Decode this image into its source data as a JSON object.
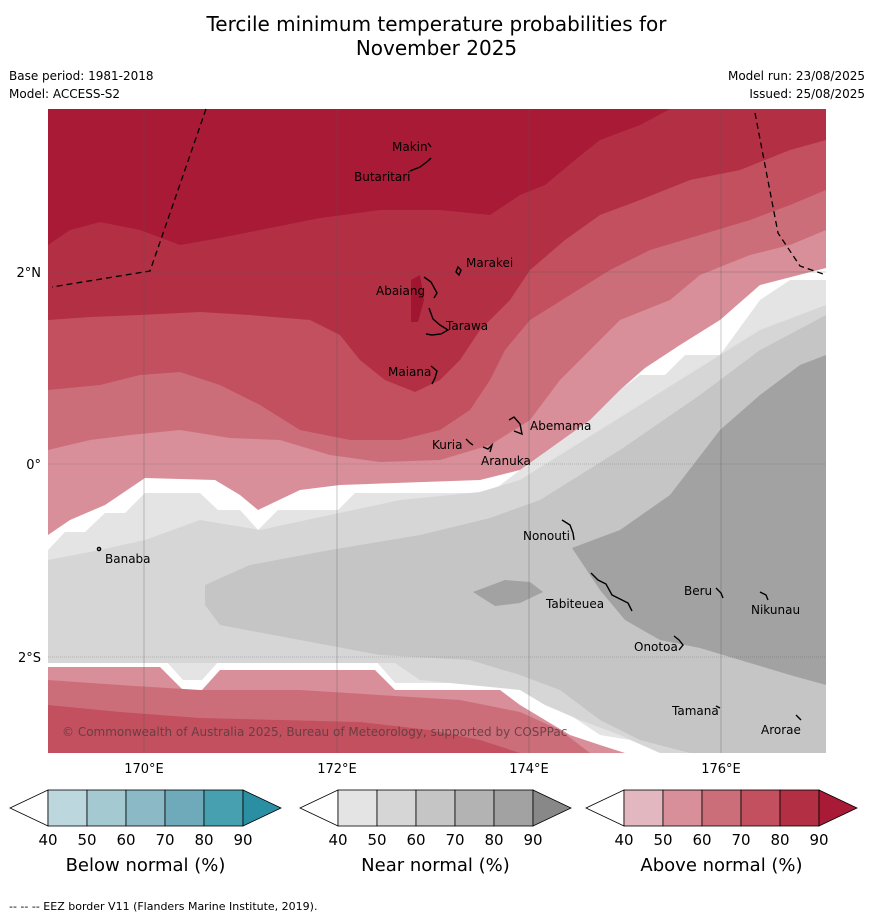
{
  "title_line1": "Tercile minimum temperature probabilities for",
  "title_line2": "November 2025",
  "base_period": "Base period: 1981-2018",
  "model": "Model: ACCESS-S2",
  "model_run": "Model run: 23/08/2025",
  "issued": "Issued: 25/08/2025",
  "copyright": "© Commonwealth of Australia 2025, Bureau of Meteorology, supported by COSPPac",
  "footnote": "--  --  -- EEZ border V11 (Flanders Marine Institute, 2019).",
  "lat_labels": [
    "2°N",
    "0°",
    "2°S"
  ],
  "lon_labels": [
    "170°E",
    "172°E",
    "174°E",
    "176°E"
  ],
  "places": [
    "Makin",
    "Butaritari",
    "Marakei",
    "Abaiang",
    "Tarawa",
    "Maiana",
    "Abemama",
    "Kuria",
    "Aranuka",
    "Banaba",
    "Nonouti",
    "Beru",
    "Nikunau",
    "Tabiteuea",
    "Onotoa",
    "Tamana",
    "Arorae"
  ],
  "colorbars": [
    {
      "name": "below",
      "title": "Below normal (%)",
      "ticks": [
        "40",
        "50",
        "60",
        "70",
        "80",
        "90"
      ],
      "colors": [
        "#bdd7df",
        "#a5c9d1",
        "#8bbac6",
        "#6eaab9",
        "#47a0b0",
        "#2b8fa4"
      ]
    },
    {
      "name": "near",
      "title": "Near normal (%)",
      "ticks": [
        "40",
        "50",
        "60",
        "70",
        "80",
        "90"
      ],
      "colors": [
        "#e4e4e4",
        "#d6d6d6",
        "#c5c5c5",
        "#b3b3b3",
        "#a2a2a2",
        "#888888"
      ]
    },
    {
      "name": "above",
      "title": "Above normal (%)",
      "ticks": [
        "40",
        "50",
        "60",
        "70",
        "80",
        "90"
      ],
      "colors": [
        "#e3b7bf",
        "#d88f99",
        "#cc6e79",
        "#c2505e",
        "#b32f44",
        "#a81a36"
      ]
    }
  ]
}
